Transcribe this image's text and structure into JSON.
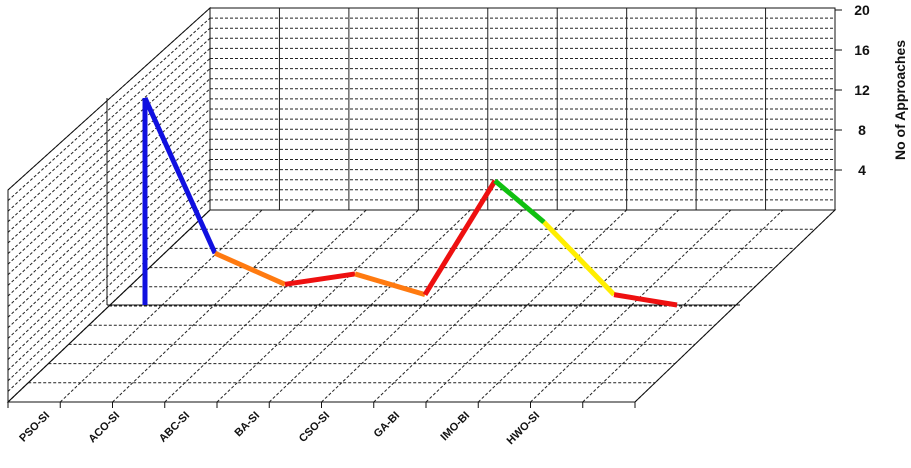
{
  "chart_data": {
    "type": "line",
    "style": "3d-wall",
    "categories": [
      "PSO-SI",
      "ACO-SI",
      "ABC-SI",
      "BA-SI",
      "CSO-SI",
      "GA-BI",
      "IMO-BI",
      "HWO-SI"
    ],
    "ylabel": "No of Approaches",
    "yticks": [
      4,
      8,
      12,
      16,
      20
    ],
    "ylim": [
      0,
      20
    ],
    "grid": true,
    "segments": [
      {
        "from": [
          1,
          0
        ],
        "to": [
          1,
          20
        ],
        "color": "#1010e0"
      },
      {
        "from": [
          1,
          20
        ],
        "to": [
          2,
          5
        ],
        "color": "#1010e0"
      },
      {
        "from": [
          2,
          5
        ],
        "to": [
          3,
          2
        ],
        "color": "#ff7a10"
      },
      {
        "from": [
          3,
          2
        ],
        "to": [
          4,
          3
        ],
        "color": "#ee1010"
      },
      {
        "from": [
          4,
          3
        ],
        "to": [
          5,
          1
        ],
        "color": "#ff7a10"
      },
      {
        "from": [
          5,
          1
        ],
        "to": [
          6,
          12
        ],
        "color": "#ee1010"
      },
      {
        "from": [
          6,
          12
        ],
        "to": [
          6.7,
          8
        ],
        "color": "#10c010"
      },
      {
        "from": [
          6.7,
          8
        ],
        "to": [
          7.7,
          1
        ],
        "color": "#ffee00"
      },
      {
        "from": [
          7.7,
          1
        ],
        "to": [
          8.6,
          0
        ],
        "color": "#ee1010"
      }
    ]
  }
}
